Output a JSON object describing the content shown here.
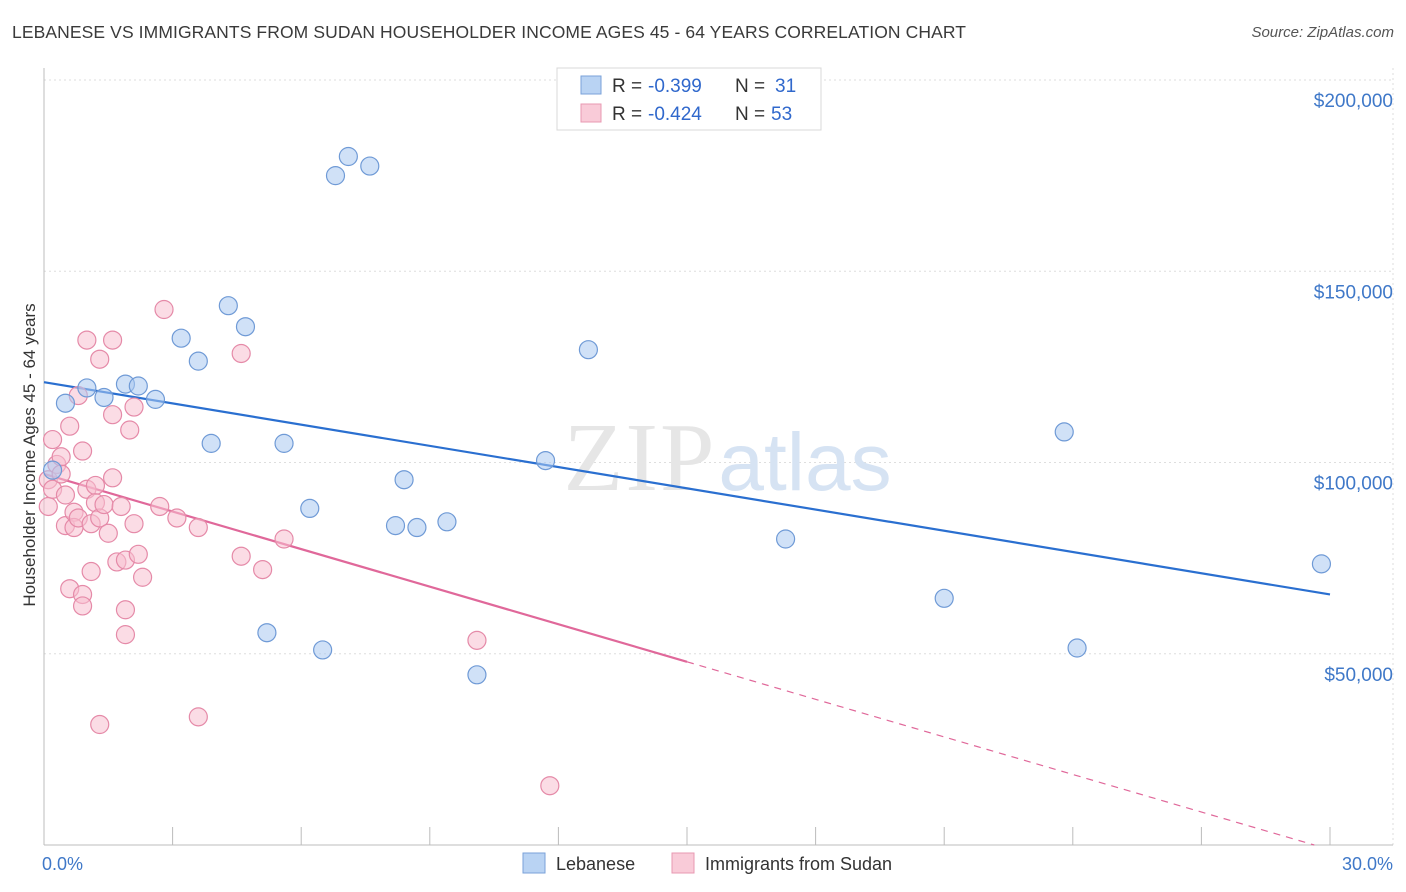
{
  "title": "LEBANESE VS IMMIGRANTS FROM SUDAN HOUSEHOLDER INCOME AGES 45 - 64 YEARS CORRELATION CHART",
  "source": "Source: ZipAtlas.com",
  "watermark": {
    "zip": "ZIP",
    "atlas": "atlas"
  },
  "legend": {
    "r_label": "R =",
    "n_label": "N =",
    "rows": [
      {
        "r": "-0.399",
        "n": "31"
      },
      {
        "r": "-0.424",
        "n": "53"
      }
    ]
  },
  "chart_data": {
    "type": "scatter",
    "ylabel": "Householder Income Ages 45 - 64 years",
    "xlim": [
      0,
      30
    ],
    "ylim": [
      0,
      200000
    ],
    "x_tick_labels": [
      "0.0%",
      "30.0%"
    ],
    "y_ticks": [
      {
        "value": 50000,
        "label": "$50,000"
      },
      {
        "value": 100000,
        "label": "$100,000"
      },
      {
        "value": 150000,
        "label": "$150,000"
      },
      {
        "value": 200000,
        "label": "$200,000"
      }
    ],
    "grid": true,
    "series": [
      {
        "name": "Lebanese",
        "color": "#a9c8f0",
        "stroke": "#6f9ad6",
        "line_color": "#2a6fd0",
        "trend": {
          "x": [
            0,
            30
          ],
          "y": [
            121000,
            65500
          ],
          "solid_to": 30
        },
        "points": [
          {
            "x": 0.2,
            "y": 98000
          },
          {
            "x": 0.5,
            "y": 115500
          },
          {
            "x": 1.0,
            "y": 119500
          },
          {
            "x": 1.4,
            "y": 117000
          },
          {
            "x": 1.9,
            "y": 120500
          },
          {
            "x": 2.2,
            "y": 120000
          },
          {
            "x": 2.6,
            "y": 116500
          },
          {
            "x": 3.2,
            "y": 132500
          },
          {
            "x": 3.6,
            "y": 126500
          },
          {
            "x": 3.9,
            "y": 105000
          },
          {
            "x": 4.3,
            "y": 141000
          },
          {
            "x": 4.7,
            "y": 135500
          },
          {
            "x": 5.2,
            "y": 55500
          },
          {
            "x": 5.6,
            "y": 105000
          },
          {
            "x": 6.2,
            "y": 88000
          },
          {
            "x": 6.5,
            "y": 51000
          },
          {
            "x": 6.8,
            "y": 175000
          },
          {
            "x": 7.1,
            "y": 180000
          },
          {
            "x": 7.6,
            "y": 177500
          },
          {
            "x": 8.2,
            "y": 83500
          },
          {
            "x": 8.4,
            "y": 95500
          },
          {
            "x": 8.7,
            "y": 83000
          },
          {
            "x": 9.4,
            "y": 84500
          },
          {
            "x": 10.1,
            "y": 44500
          },
          {
            "x": 11.7,
            "y": 100500
          },
          {
            "x": 12.7,
            "y": 129500
          },
          {
            "x": 17.3,
            "y": 80000
          },
          {
            "x": 21.0,
            "y": 64500
          },
          {
            "x": 23.8,
            "y": 108000
          },
          {
            "x": 24.1,
            "y": 51500
          },
          {
            "x": 29.8,
            "y": 73500
          }
        ]
      },
      {
        "name": "Immigrants from Sudan",
        "color": "#f7bfd0",
        "stroke": "#e58aa8",
        "line_color": "#e0689a",
        "trend": {
          "x": [
            0,
            30
          ],
          "y": [
            97000,
            -1200
          ],
          "solid_to": 15
        },
        "points": [
          {
            "x": 0.1,
            "y": 88500
          },
          {
            "x": 0.1,
            "y": 95500
          },
          {
            "x": 0.2,
            "y": 106000
          },
          {
            "x": 0.2,
            "y": 93000
          },
          {
            "x": 0.3,
            "y": 99500
          },
          {
            "x": 0.4,
            "y": 97000
          },
          {
            "x": 0.4,
            "y": 101500
          },
          {
            "x": 0.5,
            "y": 91500
          },
          {
            "x": 0.5,
            "y": 83500
          },
          {
            "x": 0.6,
            "y": 109500
          },
          {
            "x": 0.6,
            "y": 67000
          },
          {
            "x": 0.7,
            "y": 87000
          },
          {
            "x": 0.7,
            "y": 83000
          },
          {
            "x": 0.8,
            "y": 117500
          },
          {
            "x": 0.8,
            "y": 85500
          },
          {
            "x": 0.9,
            "y": 65500
          },
          {
            "x": 0.9,
            "y": 62500
          },
          {
            "x": 0.9,
            "y": 103000
          },
          {
            "x": 1.0,
            "y": 93000
          },
          {
            "x": 1.0,
            "y": 132000
          },
          {
            "x": 1.1,
            "y": 84000
          },
          {
            "x": 1.1,
            "y": 71500
          },
          {
            "x": 1.2,
            "y": 94000
          },
          {
            "x": 1.2,
            "y": 89500
          },
          {
            "x": 1.3,
            "y": 85500
          },
          {
            "x": 1.3,
            "y": 127000
          },
          {
            "x": 1.3,
            "y": 31500
          },
          {
            "x": 1.4,
            "y": 89000
          },
          {
            "x": 1.5,
            "y": 81500
          },
          {
            "x": 1.6,
            "y": 132000
          },
          {
            "x": 1.6,
            "y": 96000
          },
          {
            "x": 1.6,
            "y": 112500
          },
          {
            "x": 1.7,
            "y": 74000
          },
          {
            "x": 1.8,
            "y": 88500
          },
          {
            "x": 1.9,
            "y": 74500
          },
          {
            "x": 1.9,
            "y": 55000
          },
          {
            "x": 1.9,
            "y": 61500
          },
          {
            "x": 2.0,
            "y": 108500
          },
          {
            "x": 2.1,
            "y": 84000
          },
          {
            "x": 2.1,
            "y": 114500
          },
          {
            "x": 2.2,
            "y": 76000
          },
          {
            "x": 2.3,
            "y": 70000
          },
          {
            "x": 2.7,
            "y": 88500
          },
          {
            "x": 2.8,
            "y": 140000
          },
          {
            "x": 3.1,
            "y": 85500
          },
          {
            "x": 3.6,
            "y": 83000
          },
          {
            "x": 3.6,
            "y": 33500
          },
          {
            "x": 4.6,
            "y": 128500
          },
          {
            "x": 4.6,
            "y": 75500
          },
          {
            "x": 5.1,
            "y": 72000
          },
          {
            "x": 5.6,
            "y": 80000
          },
          {
            "x": 10.1,
            "y": 53500
          },
          {
            "x": 11.8,
            "y": 15500
          }
        ]
      }
    ]
  }
}
